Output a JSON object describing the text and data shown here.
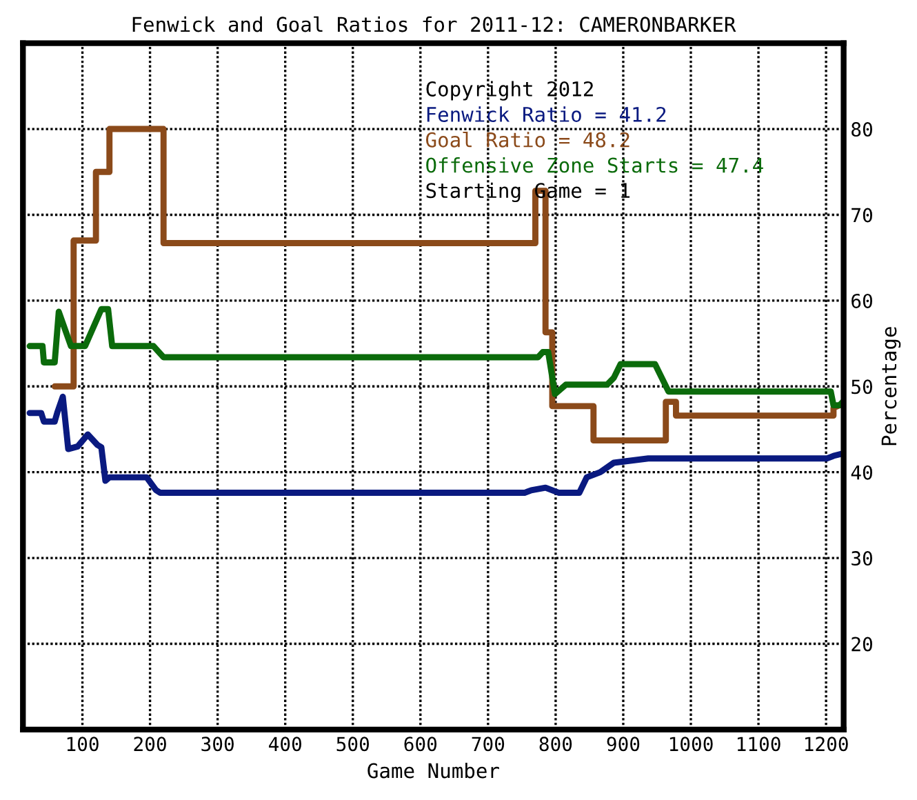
{
  "chart_data": {
    "type": "line",
    "title": "Fenwick and Goal Ratios for 2011-12: CAMERONBARKER",
    "xlabel": "Game Number",
    "ylabel": "Percentage",
    "xlim": [
      12,
      1226
    ],
    "ylim": [
      10,
      90
    ],
    "xticks": [
      100,
      200,
      300,
      400,
      500,
      600,
      700,
      800,
      900,
      1000,
      1100,
      1200
    ],
    "yticks": [
      20,
      30,
      40,
      50,
      60,
      70,
      80
    ],
    "grid": true,
    "legend": false,
    "line_style": "solid",
    "marker": "none",
    "annotations": [
      "Copyright 2012",
      "Starting Game = 1"
    ],
    "series": [
      {
        "name": "Fenwick Ratio = 41.2",
        "color": "#0a1a80",
        "x": [
          22,
          39,
          43,
          59,
          63,
          71,
          79,
          93,
          108,
          122,
          128,
          134,
          140,
          195,
          209,
          215,
          754,
          764,
          785,
          805,
          835,
          846,
          866,
          886,
          937,
          1201,
          1211,
          1226
        ],
        "values": [
          46.9,
          46.9,
          45.9,
          45.9,
          47.0,
          48.8,
          42.7,
          43.0,
          44.4,
          43.2,
          42.9,
          39.0,
          39.4,
          39.4,
          37.9,
          37.6,
          37.6,
          37.9,
          38.2,
          37.6,
          37.6,
          39.4,
          40.0,
          41.1,
          41.6,
          41.6,
          41.9,
          42.2
        ]
      },
      {
        "name": "Goal Ratio = 48.2",
        "color": "#8b4a1a",
        "x": [
          59,
          87,
          87,
          120,
          120,
          140,
          140,
          220,
          220,
          770,
          770,
          785,
          785,
          795,
          795,
          815,
          815,
          856,
          856,
          870,
          870,
          963,
          963,
          978,
          978,
          1201,
          1201,
          1211,
          1211,
          1226
        ],
        "values": [
          50,
          50,
          67.0,
          67.0,
          75.0,
          75.0,
          80,
          80,
          66.7,
          66.7,
          72.8,
          72.8,
          56.3,
          56.3,
          47.7,
          47.7,
          47.7,
          47.7,
          43.7,
          43.7,
          43.7,
          43.7,
          48.2,
          48.2,
          46.6,
          46.6,
          46.6,
          46.6,
          47.5,
          48.0
        ]
      },
      {
        "name": "Offensive Zone Starts = 47.4",
        "color": "#0b6b0b",
        "x": [
          22,
          41,
          43,
          59,
          65,
          83,
          104,
          128,
          138,
          144,
          205,
          220,
          774,
          781,
          789,
          799,
          815,
          876,
          886,
          896,
          947,
          967,
          1207,
          1211,
          1220,
          1226
        ],
        "values": [
          54.7,
          54.7,
          52.8,
          52.8,
          58.7,
          54.7,
          54.7,
          59.0,
          59.0,
          54.7,
          54.7,
          53.4,
          53.4,
          54.0,
          54.0,
          49.1,
          50.2,
          50.2,
          51.0,
          52.6,
          52.6,
          49.4,
          49.4,
          47.8,
          47.8,
          48.3
        ]
      }
    ]
  }
}
